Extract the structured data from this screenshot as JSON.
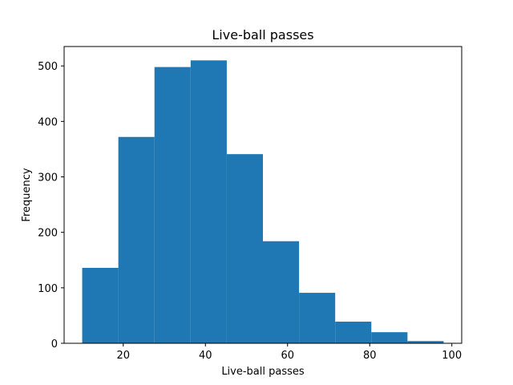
{
  "chart_data": {
    "type": "bar",
    "title": "Live-ball passes",
    "xlabel": "Live-ball passes",
    "ylabel": "Frequency",
    "xlim": [
      5.6,
      102.4
    ],
    "ylim": [
      0,
      535
    ],
    "xticks": [
      20,
      40,
      60,
      80,
      100
    ],
    "yticks": [
      0,
      100,
      200,
      300,
      400,
      500
    ],
    "bins": [
      {
        "x0": 10.0,
        "x1": 18.8,
        "count": 136
      },
      {
        "x0": 18.8,
        "x1": 27.6,
        "count": 372
      },
      {
        "x0": 27.6,
        "x1": 36.4,
        "count": 498
      },
      {
        "x0": 36.4,
        "x1": 45.2,
        "count": 510
      },
      {
        "x0": 45.2,
        "x1": 54.0,
        "count": 341
      },
      {
        "x0": 54.0,
        "x1": 62.8,
        "count": 184
      },
      {
        "x0": 62.8,
        "x1": 71.6,
        "count": 91
      },
      {
        "x0": 71.6,
        "x1": 80.4,
        "count": 39
      },
      {
        "x0": 80.4,
        "x1": 89.2,
        "count": 20
      },
      {
        "x0": 89.2,
        "x1": 98.0,
        "count": 4
      }
    ],
    "bar_color": "#1f77b4",
    "grid": false,
    "legend": "none"
  }
}
